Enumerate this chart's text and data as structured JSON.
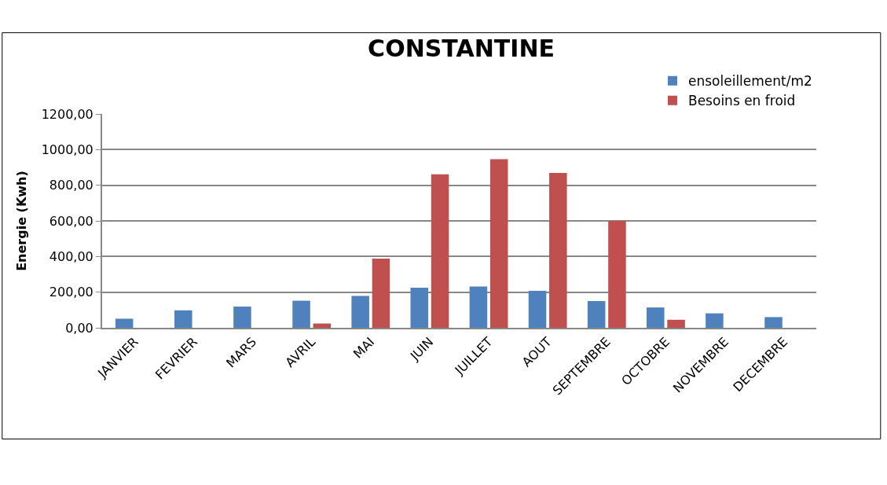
{
  "chart_data": {
    "type": "bar",
    "title": "CONSTANTINE",
    "ylabel": "Energie (Kwh)",
    "categories": [
      "JANVIER",
      "FEVRIER",
      "MARS",
      "AVRIL",
      "MAI",
      "JUIN",
      "JUILLET",
      "AOUT",
      "SEPTEMBRE",
      "OCTOBRE",
      "NOVEMBRE",
      "DECEMBRE"
    ],
    "series": [
      {
        "name": "ensoleillement/m2",
        "color": "#4f81bd",
        "values": [
          51,
          98,
          119,
          152,
          179,
          225,
          232,
          207,
          150,
          114,
          81,
          60
        ]
      },
      {
        "name": "Besoins en froid",
        "color": "#c0504d",
        "values": [
          0,
          0,
          0,
          24,
          388,
          861,
          946,
          869,
          600,
          45,
          0,
          0
        ]
      }
    ],
    "ylim": [
      0,
      1200
    ],
    "yticks": [
      {
        "value": 0,
        "label": "0,00"
      },
      {
        "value": 200,
        "label": "200,00"
      },
      {
        "value": 400,
        "label": "400,00"
      },
      {
        "value": 600,
        "label": "600,00"
      },
      {
        "value": 800,
        "label": "800,00"
      },
      {
        "value": 1000,
        "label": "1000,00"
      },
      {
        "value": 1200,
        "label": "1200,00"
      }
    ],
    "grid": "y",
    "legend": "top right"
  }
}
